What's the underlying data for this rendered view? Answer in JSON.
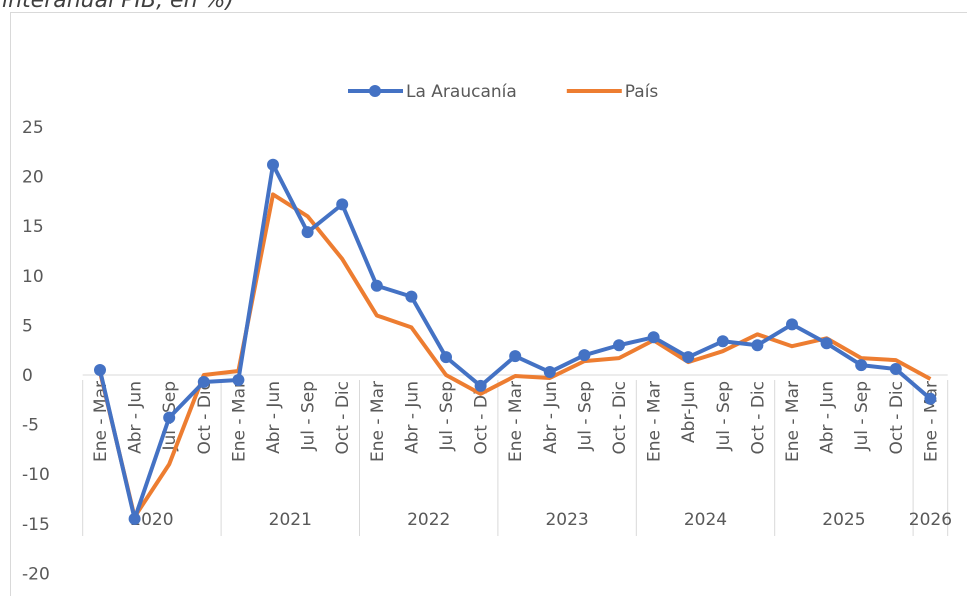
{
  "chart_data": {
    "type": "line",
    "title": "interanual PIB, en %)",
    "categories": [
      "Ene - Mar",
      "Abr - Jun",
      "Jul - Sep",
      "Oct - Dic",
      "Ene - Mar",
      "Abr - Jun",
      "Jul - Sep",
      "Oct - Dic",
      "Ene - Mar",
      "Abr - Jun",
      "Jul - Sep",
      "Oct - Dic",
      "Ene - Mar",
      "Abr - Jun",
      "Jul - Sep",
      "Oct - Dic",
      "Ene - Mar",
      "Abr-Jun",
      "Jul - Sep",
      "Oct - Dic",
      "Ene - Mar",
      "Abr - Jun",
      "Jul - Sep",
      "Oct - Dic",
      "Ene - Mar"
    ],
    "groups": [
      {
        "name": "2020",
        "span": 4
      },
      {
        "name": "2021",
        "span": 4
      },
      {
        "name": "2022",
        "span": 4
      },
      {
        "name": "2023",
        "span": 4
      },
      {
        "name": "2024",
        "span": 4
      },
      {
        "name": "2025",
        "span": 4
      },
      {
        "name": "2026",
        "span": 1
      }
    ],
    "series": [
      {
        "name": "La Araucanía",
        "color": "#4472c4",
        "marker": true,
        "values": [
          0.5,
          -14.5,
          -4.3,
          -0.7,
          -0.5,
          21.2,
          14.4,
          17.2,
          9.0,
          7.9,
          1.8,
          -1.1,
          1.9,
          0.3,
          2.0,
          3.0,
          3.8,
          1.8,
          3.4,
          3.0,
          5.1,
          3.2,
          1.0,
          0.6,
          -2.4
        ]
      },
      {
        "name": "País",
        "color": "#ed7d31",
        "marker": false,
        "values": [
          0.3,
          -14.3,
          -9.0,
          0.0,
          0.4,
          18.2,
          16.0,
          11.7,
          6.0,
          4.8,
          0.0,
          -1.9,
          -0.1,
          -0.3,
          1.4,
          1.7,
          3.5,
          1.3,
          2.4,
          4.1,
          2.9,
          3.7,
          1.7,
          1.5,
          -0.4
        ]
      }
    ],
    "ylim": [
      -20,
      25
    ],
    "yticks": [
      -20,
      -15,
      -10,
      -5,
      0,
      5,
      10,
      15,
      20,
      25
    ],
    "grid": false,
    "legend": "top"
  }
}
